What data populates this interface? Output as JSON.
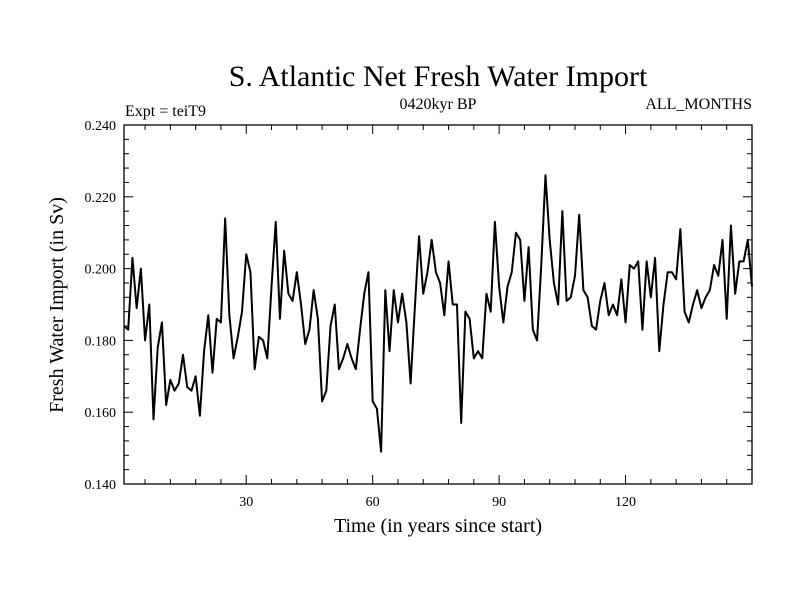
{
  "chart_data": {
    "type": "line",
    "title": "S. Atlantic Net Fresh Water Import",
    "subtitle_left": "Expt = teiT9",
    "subtitle_center": "0420kyr BP",
    "subtitle_right": "ALL_MONTHS",
    "xlabel": "Time (in years since start)",
    "ylabel": "Fresh Water Import (in Sv)",
    "xlim": [
      1,
      150
    ],
    "ylim": [
      0.14,
      0.24
    ],
    "xticks": [
      30,
      60,
      90,
      120
    ],
    "xtick_labels": [
      "30",
      "60",
      "90",
      "120"
    ],
    "yticks": [
      0.14,
      0.16,
      0.18,
      0.2,
      0.22,
      0.24
    ],
    "ytick_labels": [
      "0.140",
      "0.160",
      "0.180",
      "0.200",
      "0.220",
      "0.240"
    ],
    "series": [
      {
        "name": "Fresh Water Import",
        "color": "#000000",
        "x": [
          1,
          2,
          3,
          4,
          5,
          6,
          7,
          8,
          9,
          10,
          11,
          12,
          13,
          14,
          15,
          16,
          17,
          18,
          19,
          20,
          21,
          22,
          23,
          24,
          25,
          26,
          27,
          28,
          29,
          30,
          31,
          32,
          33,
          34,
          35,
          36,
          37,
          38,
          39,
          40,
          41,
          42,
          43,
          44,
          45,
          46,
          47,
          48,
          49,
          50,
          51,
          52,
          53,
          54,
          55,
          56,
          57,
          58,
          59,
          60,
          61,
          62,
          63,
          64,
          65,
          66,
          67,
          68,
          69,
          70,
          71,
          72,
          73,
          74,
          75,
          76,
          77,
          78,
          79,
          80,
          81,
          82,
          83,
          84,
          85,
          86,
          87,
          88,
          89,
          90,
          91,
          92,
          93,
          94,
          95,
          96,
          97,
          98,
          99,
          100,
          101,
          102,
          103,
          104,
          105,
          106,
          107,
          108,
          109,
          110,
          111,
          112,
          113,
          114,
          115,
          116,
          117,
          118,
          119,
          120,
          121,
          122,
          123,
          124,
          125,
          126,
          127,
          128,
          129,
          130,
          131,
          132,
          133,
          134,
          135,
          136,
          137,
          138,
          139,
          140,
          141,
          142,
          143,
          144,
          145,
          146,
          147,
          148,
          149,
          150
        ],
        "values": [
          0.184,
          0.183,
          0.203,
          0.189,
          0.2,
          0.18,
          0.19,
          0.158,
          0.178,
          0.185,
          0.162,
          0.169,
          0.166,
          0.168,
          0.176,
          0.167,
          0.166,
          0.17,
          0.159,
          0.177,
          0.187,
          0.171,
          0.186,
          0.185,
          0.214,
          0.187,
          0.175,
          0.181,
          0.188,
          0.204,
          0.199,
          0.172,
          0.181,
          0.18,
          0.175,
          0.195,
          0.213,
          0.186,
          0.205,
          0.193,
          0.191,
          0.199,
          0.19,
          0.179,
          0.183,
          0.194,
          0.186,
          0.163,
          0.166,
          0.184,
          0.19,
          0.172,
          0.175,
          0.179,
          0.175,
          0.172,
          0.183,
          0.193,
          0.199,
          0.163,
          0.161,
          0.149,
          0.194,
          0.177,
          0.194,
          0.185,
          0.193,
          0.185,
          0.168,
          0.189,
          0.209,
          0.193,
          0.199,
          0.208,
          0.199,
          0.196,
          0.187,
          0.202,
          0.19,
          0.19,
          0.157,
          0.188,
          0.186,
          0.175,
          0.177,
          0.175,
          0.193,
          0.188,
          0.213,
          0.195,
          0.185,
          0.195,
          0.199,
          0.21,
          0.208,
          0.191,
          0.206,
          0.183,
          0.18,
          0.201,
          0.226,
          0.208,
          0.196,
          0.19,
          0.216,
          0.191,
          0.192,
          0.198,
          0.215,
          0.194,
          0.192,
          0.184,
          0.183,
          0.191,
          0.196,
          0.187,
          0.19,
          0.187,
          0.197,
          0.185,
          0.201,
          0.2,
          0.202,
          0.183,
          0.202,
          0.192,
          0.203,
          0.177,
          0.19,
          0.199,
          0.199,
          0.197,
          0.211,
          0.188,
          0.185,
          0.19,
          0.194,
          0.189,
          0.192,
          0.194,
          0.201,
          0.198,
          0.208,
          0.186,
          0.212,
          0.193,
          0.202,
          0.202,
          0.208,
          0.195
        ]
      }
    ]
  }
}
